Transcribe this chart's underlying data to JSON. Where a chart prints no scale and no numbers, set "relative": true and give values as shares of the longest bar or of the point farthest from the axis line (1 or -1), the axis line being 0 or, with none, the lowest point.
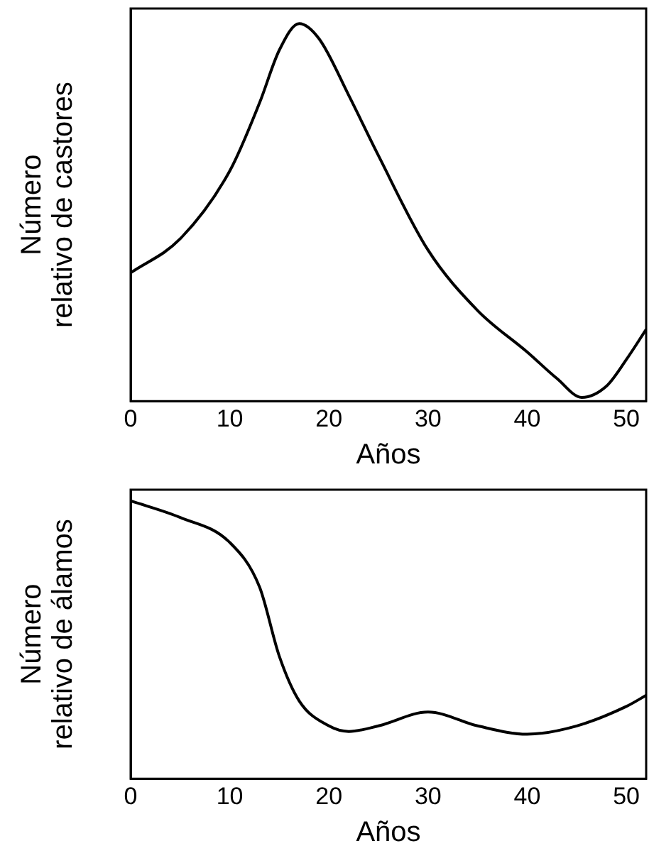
{
  "chart_data": [
    {
      "type": "line",
      "relative": true,
      "ylabel": "Número relativo de castores",
      "xlabel": "Años",
      "x": [
        0,
        5,
        10,
        13,
        15,
        17,
        19,
        22,
        25,
        30,
        35,
        40,
        43,
        45.5,
        48,
        50,
        52
      ],
      "series": [
        {
          "color": "#000000",
          "values": [
            0.34,
            0.43,
            0.61,
            0.79,
            0.93,
            1.0,
            0.96,
            0.81,
            0.65,
            0.4,
            0.24,
            0.13,
            0.06,
            0.01,
            0.04,
            0.11,
            0.19
          ]
        }
      ],
      "xlim": [
        0,
        52
      ],
      "xticks": [
        0,
        10,
        20,
        30,
        40,
        50
      ],
      "grid": false,
      "legend": false,
      "marker": "none",
      "line_style": "solid"
    },
    {
      "type": "line",
      "relative": true,
      "ylabel": "Número relativo de álamos",
      "xlabel": "Años",
      "x": [
        0,
        5,
        10,
        13,
        15,
        17,
        20,
        22,
        25,
        30,
        35,
        40,
        45,
        50,
        52
      ],
      "series": [
        {
          "color": "#000000",
          "values": [
            1.0,
            0.94,
            0.85,
            0.69,
            0.44,
            0.28,
            0.19,
            0.17,
            0.19,
            0.24,
            0.19,
            0.16,
            0.19,
            0.26,
            0.3
          ]
        }
      ],
      "xlim": [
        0,
        52
      ],
      "xticks": [
        0,
        10,
        20,
        30,
        40,
        50
      ],
      "grid": false,
      "legend": false,
      "marker": "none",
      "line_style": "solid"
    }
  ]
}
